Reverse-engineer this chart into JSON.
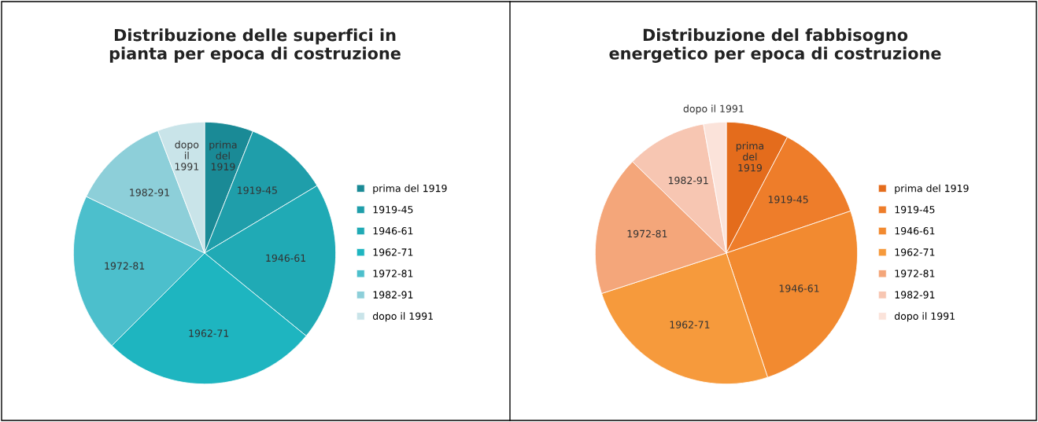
{
  "chart_data": [
    {
      "type": "pie",
      "title": "Distribuzione delle superfici in\npianta per epoca di costruzione",
      "categories": [
        "prima del 1919",
        "1919-45",
        "1946-61",
        "1962-71",
        "1972-81",
        "1982-91",
        "dopo il 1991"
      ],
      "values": [
        6.0,
        10.4,
        19.5,
        26.6,
        19.6,
        12.1,
        5.8
      ],
      "colors": [
        "#1a8a96",
        "#1f9eaa",
        "#20aab5",
        "#1eb5c0",
        "#4cbfcc",
        "#8dcfd9",
        "#c9e4e9"
      ],
      "legend": "right"
    },
    {
      "type": "pie",
      "title": "Distribuzione del fabbisogno\nenergetico per epoca di costruzione",
      "categories": [
        "prima del 1919",
        "1919-45",
        "1946-61",
        "1962-71",
        "1972-81",
        "1982-91",
        "dopo il 1991"
      ],
      "values": [
        7.7,
        12.1,
        25.1,
        25.1,
        17.3,
        9.9,
        2.8
      ],
      "colors": [
        "#e46c1c",
        "#ee7d2a",
        "#f28a30",
        "#f69a3c",
        "#f4a67a",
        "#f7c6b2",
        "#fbe3da"
      ],
      "legend": "right"
    }
  ]
}
